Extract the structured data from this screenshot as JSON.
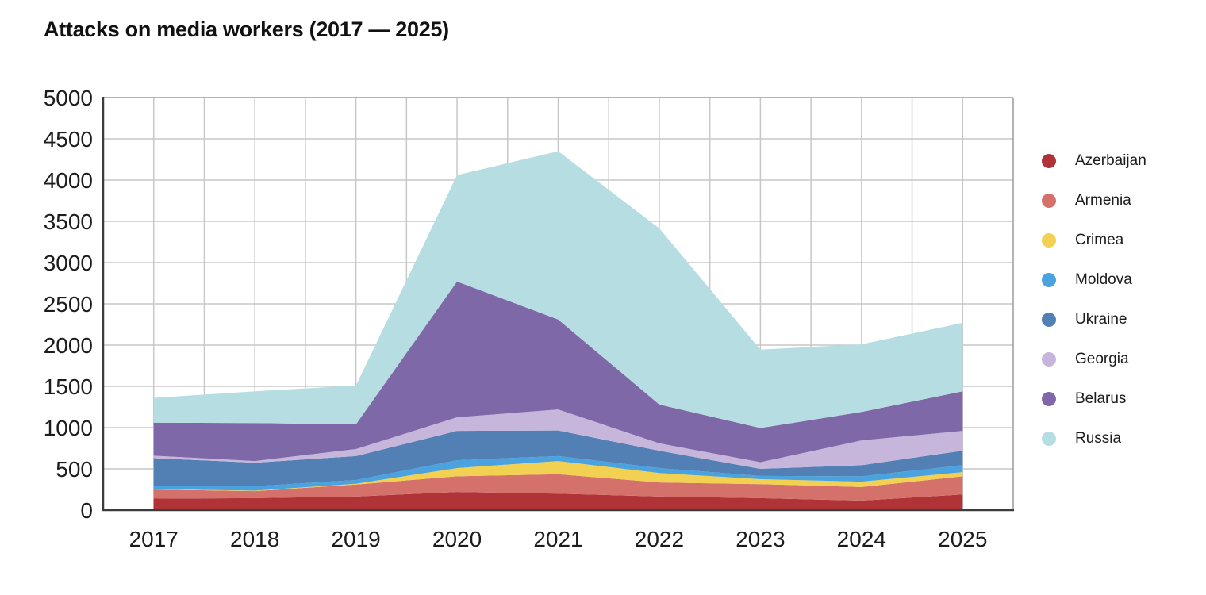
{
  "title": "Attacks on media workers (2017 — 2025)",
  "chart_data": {
    "type": "area",
    "stacked": true,
    "title": "Attacks on media workers (2017 — 2025)",
    "x": [
      2017,
      2018,
      2019,
      2020,
      2021,
      2022,
      2023,
      2024,
      2025
    ],
    "series": [
      {
        "name": "Azerbaijan",
        "color": "#b03338",
        "values": [
          140,
          145,
          165,
          220,
          200,
          165,
          145,
          115,
          190
        ]
      },
      {
        "name": "Armenia",
        "color": "#d4716b",
        "values": [
          110,
          85,
          145,
          190,
          235,
          170,
          170,
          165,
          220
        ]
      },
      {
        "name": "Crimea",
        "color": "#f2d052",
        "values": [
          5,
          5,
          10,
          100,
          160,
          115,
          60,
          65,
          50
        ]
      },
      {
        "name": "Moldova",
        "color": "#4aa2de",
        "values": [
          35,
          55,
          45,
          95,
          60,
          60,
          40,
          65,
          85
        ]
      },
      {
        "name": "Ukraine",
        "color": "#5280b4",
        "values": [
          340,
          285,
          290,
          355,
          310,
          210,
          85,
          135,
          175
        ]
      },
      {
        "name": "Georgia",
        "color": "#c6b6dc",
        "values": [
          30,
          20,
          85,
          165,
          255,
          90,
          80,
          300,
          240
        ]
      },
      {
        "name": "Belarus",
        "color": "#7f68a8",
        "values": [
          400,
          460,
          300,
          1645,
          1090,
          470,
          415,
          345,
          480
        ]
      },
      {
        "name": "Russia",
        "color": "#b6dee2",
        "values": [
          300,
          385,
          470,
          1290,
          2040,
          2135,
          950,
          820,
          830
        ]
      }
    ],
    "totals": [
      1360,
      1440,
      1510,
      4060,
      4350,
      3415,
      1945,
      2010,
      2270
    ],
    "xlabel": "",
    "ylabel": "",
    "ylim": [
      0,
      5000
    ],
    "y_ticks": [
      0,
      500,
      1000,
      1500,
      2000,
      2500,
      3000,
      3500,
      4000,
      4500,
      5000
    ],
    "grid": true,
    "grid_minor_x": "half-year",
    "legend_position": "right"
  }
}
